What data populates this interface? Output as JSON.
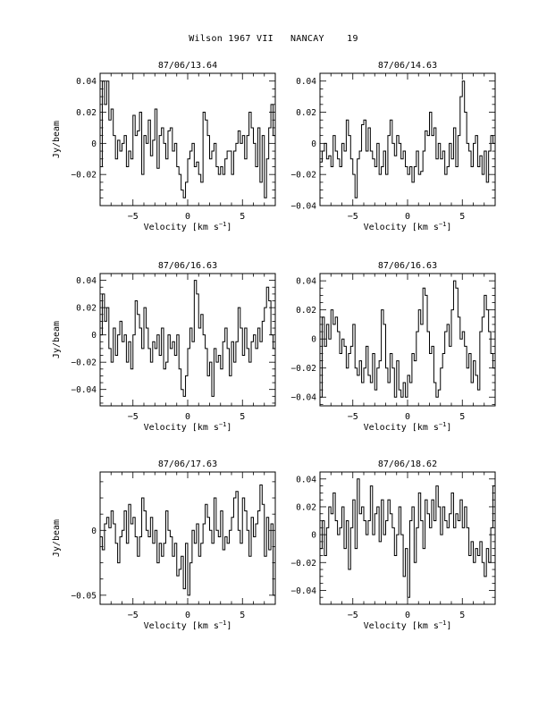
{
  "page_title": "Wilson 1967 VII   NANCAY    19",
  "chart_data": [
    {
      "type": "line",
      "title": "87/06/13.64",
      "xlabel": "Velocity [km s",
      "xlabel_sup": "−1",
      "xlabel_end": "]",
      "ylabel": "Jy/beam",
      "xlim": [
        -8,
        8
      ],
      "ylim": [
        -0.04,
        0.045
      ],
      "xticks": [
        {
          "v": -5,
          "label": "−5"
        },
        {
          "v": 0,
          "label": "0"
        },
        {
          "v": 5,
          "label": "5"
        }
      ],
      "yticks": [
        {
          "v": 0.04,
          "label": "0.04"
        },
        {
          "v": 0.02,
          "label": "0.02"
        },
        {
          "v": 0,
          "label": "0"
        },
        {
          "v": -0.02,
          "label": "−0.02"
        }
      ],
      "x": [
        -8.0,
        -7.8,
        -7.6,
        -7.4,
        -7.2,
        -7.0,
        -6.8,
        -6.6,
        -6.4,
        -6.2,
        -6.0,
        -5.8,
        -5.6,
        -5.4,
        -5.2,
        -5.0,
        -4.8,
        -4.6,
        -4.4,
        -4.2,
        -4.0,
        -3.8,
        -3.6,
        -3.4,
        -3.2,
        -3.0,
        -2.8,
        -2.6,
        -2.4,
        -2.2,
        -2.0,
        -1.8,
        -1.6,
        -1.4,
        -1.2,
        -1.0,
        -0.8,
        -0.6,
        -0.4,
        -0.2,
        0.0,
        0.2,
        0.4,
        0.6,
        0.8,
        1.0,
        1.2,
        1.4,
        1.6,
        1.8,
        2.0,
        2.2,
        2.4,
        2.6,
        2.8,
        3.0,
        3.2,
        3.4,
        3.6,
        3.8,
        4.0,
        4.2,
        4.4,
        4.6,
        4.8,
        5.0,
        5.2,
        5.4,
        5.6,
        5.8,
        6.0,
        6.2,
        6.4,
        6.6,
        6.8,
        7.0,
        7.2,
        7.4,
        7.6,
        7.8
      ],
      "values": [
        -0.015,
        0.04,
        0.025,
        0.04,
        0.015,
        0.022,
        0.005,
        -0.01,
        0.002,
        -0.005,
        0.0,
        0.005,
        -0.015,
        -0.005,
        -0.01,
        0.018,
        0.005,
        0.008,
        0.02,
        -0.02,
        0.005,
        0.0,
        0.015,
        -0.008,
        0.002,
        0.022,
        -0.016,
        0.005,
        0.01,
        0.0,
        -0.01,
        0.008,
        0.01,
        -0.005,
        0.0,
        -0.015,
        -0.02,
        -0.03,
        -0.035,
        -0.025,
        -0.01,
        -0.005,
        0.0,
        -0.015,
        -0.012,
        -0.02,
        -0.025,
        0.02,
        0.015,
        0.005,
        -0.01,
        -0.005,
        0.0,
        -0.015,
        -0.02,
        -0.015,
        -0.02,
        -0.01,
        -0.005,
        -0.005,
        -0.02,
        -0.005,
        0.0,
        0.008,
        0.0,
        0.005,
        -0.01,
        0.005,
        0.02,
        0.01,
        0.0,
        -0.015,
        0.01,
        -0.025,
        0.005,
        -0.035,
        -0.01,
        0.01,
        0.025,
        0.005
      ]
    },
    {
      "type": "line",
      "title": "87/06/14.63",
      "xlabel": "Velocity [km s",
      "xlabel_sup": "−1",
      "xlabel_end": "]",
      "ylabel": "",
      "xlim": [
        -8,
        8
      ],
      "ylim": [
        -0.04,
        0.045
      ],
      "xticks": [
        {
          "v": -5,
          "label": "−5"
        },
        {
          "v": 0,
          "label": "0"
        },
        {
          "v": 5,
          "label": "5"
        }
      ],
      "yticks": [
        {
          "v": 0.04,
          "label": "0.04"
        },
        {
          "v": 0.02,
          "label": "0.02"
        },
        {
          "v": 0,
          "label": "0"
        },
        {
          "v": -0.02,
          "label": "−0.02"
        },
        {
          "v": -0.04,
          "label": "−0.04"
        }
      ],
      "x": [
        -8.0,
        -7.8,
        -7.6,
        -7.4,
        -7.2,
        -7.0,
        -6.8,
        -6.6,
        -6.4,
        -6.2,
        -6.0,
        -5.8,
        -5.6,
        -5.4,
        -5.2,
        -5.0,
        -4.8,
        -4.6,
        -4.4,
        -4.2,
        -4.0,
        -3.8,
        -3.6,
        -3.4,
        -3.2,
        -3.0,
        -2.8,
        -2.6,
        -2.4,
        -2.2,
        -2.0,
        -1.8,
        -1.6,
        -1.4,
        -1.2,
        -1.0,
        -0.8,
        -0.6,
        -0.4,
        -0.2,
        0.0,
        0.2,
        0.4,
        0.6,
        0.8,
        1.0,
        1.2,
        1.4,
        1.6,
        1.8,
        2.0,
        2.2,
        2.4,
        2.6,
        2.8,
        3.0,
        3.2,
        3.4,
        3.6,
        3.8,
        4.0,
        4.2,
        4.4,
        4.6,
        4.8,
        5.0,
        5.2,
        5.4,
        5.6,
        5.8,
        6.0,
        6.2,
        6.4,
        6.6,
        6.8,
        7.0,
        7.2,
        7.4,
        7.6,
        7.8
      ],
      "values": [
        -0.012,
        -0.005,
        0.0,
        -0.01,
        -0.008,
        -0.015,
        0.005,
        -0.005,
        -0.01,
        -0.015,
        0.0,
        -0.005,
        0.015,
        0.005,
        -0.01,
        -0.02,
        -0.035,
        -0.01,
        -0.005,
        0.012,
        0.015,
        -0.005,
        0.01,
        -0.005,
        -0.01,
        -0.015,
        0.0,
        -0.02,
        -0.015,
        -0.005,
        -0.02,
        0.005,
        0.015,
        0.0,
        -0.008,
        0.005,
        0.0,
        -0.01,
        -0.005,
        -0.015,
        -0.02,
        -0.015,
        -0.025,
        -0.015,
        -0.005,
        -0.02,
        -0.018,
        -0.005,
        0.008,
        0.005,
        0.02,
        0.005,
        0.01,
        -0.01,
        0.0,
        -0.01,
        -0.005,
        -0.02,
        -0.015,
        0.0,
        -0.01,
        0.01,
        -0.015,
        0.005,
        0.03,
        0.04,
        0.02,
        0.0,
        -0.005,
        -0.015,
        0.0,
        0.005,
        -0.015,
        -0.008,
        -0.02,
        -0.005,
        -0.025,
        -0.005,
        0.005,
        0.0
      ]
    },
    {
      "type": "line",
      "title": "87/06/16.63",
      "xlabel": "Velocity [km s",
      "xlabel_sup": "−1",
      "xlabel_end": "]",
      "ylabel": "Jy/beam",
      "xlim": [
        -8,
        8
      ],
      "ylim": [
        -0.052,
        0.045
      ],
      "xticks": [
        {
          "v": -5,
          "label": "−5"
        },
        {
          "v": 0,
          "label": "0"
        },
        {
          "v": 5,
          "label": "5"
        }
      ],
      "yticks": [
        {
          "v": 0.04,
          "label": "0.04"
        },
        {
          "v": 0.02,
          "label": "0.02"
        },
        {
          "v": 0,
          "label": "0"
        },
        {
          "v": -0.02,
          "label": "−0.02"
        },
        {
          "v": -0.04,
          "label": "−0.04"
        }
      ],
      "x": [
        -8.0,
        -7.8,
        -7.6,
        -7.4,
        -7.2,
        -7.0,
        -6.8,
        -6.6,
        -6.4,
        -6.2,
        -6.0,
        -5.8,
        -5.6,
        -5.4,
        -5.2,
        -5.0,
        -4.8,
        -4.6,
        -4.4,
        -4.2,
        -4.0,
        -3.8,
        -3.6,
        -3.4,
        -3.2,
        -3.0,
        -2.8,
        -2.6,
        -2.4,
        -2.2,
        -2.0,
        -1.8,
        -1.6,
        -1.4,
        -1.2,
        -1.0,
        -0.8,
        -0.6,
        -0.4,
        -0.2,
        0.0,
        0.2,
        0.4,
        0.6,
        0.8,
        1.0,
        1.2,
        1.4,
        1.6,
        1.8,
        2.0,
        2.2,
        2.4,
        2.6,
        2.8,
        3.0,
        3.2,
        3.4,
        3.6,
        3.8,
        4.0,
        4.2,
        4.4,
        4.6,
        4.8,
        5.0,
        5.2,
        5.4,
        5.6,
        5.8,
        6.0,
        6.2,
        6.4,
        6.6,
        6.8,
        7.0,
        7.2,
        7.4,
        7.6,
        7.8
      ],
      "values": [
        0.0,
        0.03,
        0.01,
        0.02,
        -0.01,
        -0.02,
        0.005,
        -0.015,
        0.0,
        0.01,
        -0.005,
        0.0,
        -0.02,
        -0.005,
        -0.025,
        0.0,
        0.025,
        0.015,
        0.005,
        -0.01,
        0.02,
        0.005,
        -0.01,
        -0.02,
        -0.005,
        -0.01,
        0.0,
        -0.015,
        0.005,
        -0.025,
        -0.02,
        0.0,
        -0.01,
        -0.005,
        -0.015,
        0.0,
        -0.025,
        -0.04,
        -0.045,
        -0.03,
        -0.01,
        0.005,
        -0.005,
        0.04,
        0.03,
        0.005,
        0.015,
        0.0,
        -0.01,
        -0.03,
        -0.02,
        -0.045,
        -0.01,
        -0.02,
        -0.015,
        -0.025,
        -0.005,
        0.005,
        -0.01,
        -0.03,
        -0.005,
        -0.02,
        -0.005,
        0.02,
        0.005,
        -0.015,
        0.005,
        -0.01,
        -0.02,
        -0.005,
        0.0,
        -0.01,
        0.005,
        -0.005,
        0.01,
        0.02,
        0.035,
        0.025,
        0.0,
        -0.01
      ]
    },
    {
      "type": "line",
      "title": "87/06/16.63",
      "xlabel": "Velocity [km s",
      "xlabel_sup": "−1",
      "xlabel_end": "]",
      "ylabel": "",
      "xlim": [
        -8,
        8
      ],
      "ylim": [
        -0.046,
        0.045
      ],
      "xticks": [
        {
          "v": -5,
          "label": "−5"
        },
        {
          "v": 0,
          "label": "0"
        },
        {
          "v": 5,
          "label": "5"
        }
      ],
      "yticks": [
        {
          "v": 0.04,
          "label": "0.04"
        },
        {
          "v": 0.02,
          "label": "0.02"
        },
        {
          "v": 0,
          "label": "0"
        },
        {
          "v": -0.02,
          "label": "−0.02"
        },
        {
          "v": -0.04,
          "label": "−0.04"
        }
      ],
      "x": [
        -8.0,
        -7.8,
        -7.6,
        -7.4,
        -7.2,
        -7.0,
        -6.8,
        -6.6,
        -6.4,
        -6.2,
        -6.0,
        -5.8,
        -5.6,
        -5.4,
        -5.2,
        -5.0,
        -4.8,
        -4.6,
        -4.4,
        -4.2,
        -4.0,
        -3.8,
        -3.6,
        -3.4,
        -3.2,
        -3.0,
        -2.8,
        -2.6,
        -2.4,
        -2.2,
        -2.0,
        -1.8,
        -1.6,
        -1.4,
        -1.2,
        -1.0,
        -0.8,
        -0.6,
        -0.4,
        -0.2,
        0.0,
        0.2,
        0.4,
        0.6,
        0.8,
        1.0,
        1.2,
        1.4,
        1.6,
        1.8,
        2.0,
        2.2,
        2.4,
        2.6,
        2.8,
        3.0,
        3.2,
        3.4,
        3.6,
        3.8,
        4.0,
        4.2,
        4.4,
        4.6,
        4.8,
        5.0,
        5.2,
        5.4,
        5.6,
        5.8,
        6.0,
        6.2,
        6.4,
        6.6,
        6.8,
        7.0,
        7.2,
        7.4,
        7.6,
        7.8
      ],
      "values": [
        -0.04,
        0.015,
        -0.005,
        0.01,
        0.0,
        0.02,
        0.01,
        0.015,
        0.005,
        -0.01,
        0.0,
        -0.005,
        -0.02,
        -0.01,
        -0.005,
        0.01,
        -0.02,
        -0.025,
        -0.015,
        -0.03,
        -0.02,
        -0.005,
        -0.025,
        -0.03,
        -0.01,
        -0.035,
        -0.02,
        -0.015,
        0.02,
        0.01,
        -0.02,
        -0.03,
        -0.01,
        -0.02,
        -0.04,
        -0.015,
        -0.035,
        -0.04,
        -0.03,
        -0.04,
        -0.025,
        -0.03,
        -0.01,
        -0.015,
        0.005,
        0.02,
        0.01,
        0.035,
        0.03,
        0.005,
        -0.01,
        -0.005,
        -0.03,
        -0.04,
        -0.035,
        -0.02,
        -0.01,
        0.005,
        0.01,
        -0.005,
        0.02,
        0.04,
        0.035,
        0.015,
        0.0,
        0.005,
        -0.005,
        -0.02,
        -0.01,
        -0.03,
        -0.015,
        -0.025,
        -0.035,
        0.005,
        0.015,
        0.03,
        0.02,
        0.005,
        -0.01,
        -0.02
      ]
    },
    {
      "type": "line",
      "title": "87/06/17.63",
      "xlabel": "Velocity [km s",
      "xlabel_sup": "−1",
      "xlabel_end": "]",
      "ylabel": "Jy/beam",
      "xlim": [
        -8,
        8
      ],
      "ylim": [
        -0.057,
        0.045
      ],
      "xticks": [
        {
          "v": -5,
          "label": "−5"
        },
        {
          "v": 0,
          "label": "0"
        },
        {
          "v": 5,
          "label": "5"
        }
      ],
      "yticks": [
        {
          "v": 0,
          "label": "0"
        },
        {
          "v": -0.05,
          "label": "−0.05"
        }
      ],
      "x": [
        -8.0,
        -7.8,
        -7.6,
        -7.4,
        -7.2,
        -7.0,
        -6.8,
        -6.6,
        -6.4,
        -6.2,
        -6.0,
        -5.8,
        -5.6,
        -5.4,
        -5.2,
        -5.0,
        -4.8,
        -4.6,
        -4.4,
        -4.2,
        -4.0,
        -3.8,
        -3.6,
        -3.4,
        -3.2,
        -3.0,
        -2.8,
        -2.6,
        -2.4,
        -2.2,
        -2.0,
        -1.8,
        -1.6,
        -1.4,
        -1.2,
        -1.0,
        -0.8,
        -0.6,
        -0.4,
        -0.2,
        0.0,
        0.2,
        0.4,
        0.6,
        0.8,
        1.0,
        1.2,
        1.4,
        1.6,
        1.8,
        2.0,
        2.2,
        2.4,
        2.6,
        2.8,
        3.0,
        3.2,
        3.4,
        3.6,
        3.8,
        4.0,
        4.2,
        4.4,
        4.6,
        4.8,
        5.0,
        5.2,
        5.4,
        5.6,
        5.8,
        6.0,
        6.2,
        6.4,
        6.6,
        6.8,
        7.0,
        7.2,
        7.4,
        7.6,
        7.8
      ],
      "values": [
        -0.005,
        -0.015,
        0.005,
        0.01,
        0.002,
        0.015,
        0.005,
        -0.01,
        -0.025,
        -0.005,
        0.0,
        0.015,
        -0.01,
        0.02,
        0.005,
        0.01,
        -0.005,
        -0.02,
        -0.005,
        0.025,
        0.015,
        0.0,
        -0.005,
        0.01,
        -0.01,
        0.0,
        -0.025,
        -0.01,
        -0.02,
        -0.01,
        0.015,
        0.0,
        -0.005,
        -0.02,
        -0.01,
        -0.035,
        -0.03,
        -0.02,
        -0.045,
        -0.01,
        -0.05,
        -0.025,
        0.0,
        -0.01,
        0.005,
        -0.02,
        -0.01,
        0.005,
        0.02,
        0.01,
        0.0,
        -0.01,
        0.025,
        0.0,
        -0.005,
        0.015,
        -0.015,
        -0.005,
        -0.01,
        0.0,
        0.01,
        0.025,
        0.03,
        0.0,
        -0.01,
        0.025,
        0.015,
        0.0,
        -0.02,
        0.01,
        -0.005,
        0.005,
        0.015,
        0.035,
        0.02,
        -0.02,
        0.01,
        -0.015,
        0.005,
        -0.05
      ]
    },
    {
      "type": "line",
      "title": "87/06/18.62",
      "xlabel": "Velocity [km s",
      "xlabel_sup": "−1",
      "xlabel_end": "]",
      "ylabel": "",
      "xlim": [
        -8,
        8
      ],
      "ylim": [
        -0.05,
        0.045
      ],
      "xticks": [
        {
          "v": -5,
          "label": "−5"
        },
        {
          "v": 0,
          "label": "0"
        },
        {
          "v": 5,
          "label": "5"
        }
      ],
      "yticks": [
        {
          "v": 0.04,
          "label": "0.04"
        },
        {
          "v": 0.02,
          "label": "0.02"
        },
        {
          "v": 0,
          "label": "0"
        },
        {
          "v": -0.02,
          "label": "−0.02"
        },
        {
          "v": -0.04,
          "label": "−0.04"
        }
      ],
      "x": [
        -8.0,
        -7.8,
        -7.6,
        -7.4,
        -7.2,
        -7.0,
        -6.8,
        -6.6,
        -6.4,
        -6.2,
        -6.0,
        -5.8,
        -5.6,
        -5.4,
        -5.2,
        -5.0,
        -4.8,
        -4.6,
        -4.4,
        -4.2,
        -4.0,
        -3.8,
        -3.6,
        -3.4,
        -3.2,
        -3.0,
        -2.8,
        -2.6,
        -2.4,
        -2.2,
        -2.0,
        -1.8,
        -1.6,
        -1.4,
        -1.2,
        -1.0,
        -0.8,
        -0.6,
        -0.4,
        -0.2,
        0.0,
        0.2,
        0.4,
        0.6,
        0.8,
        1.0,
        1.2,
        1.4,
        1.6,
        1.8,
        2.0,
        2.2,
        2.4,
        2.6,
        2.8,
        3.0,
        3.2,
        3.4,
        3.6,
        3.8,
        4.0,
        4.2,
        4.4,
        4.6,
        4.8,
        5.0,
        5.2,
        5.4,
        5.6,
        5.8,
        6.0,
        6.2,
        6.4,
        6.6,
        6.8,
        7.0,
        7.2,
        7.4,
        7.6,
        7.8
      ],
      "values": [
        -0.01,
        0.01,
        -0.015,
        0.005,
        0.02,
        0.015,
        0.03,
        0.01,
        0.0,
        0.005,
        0.02,
        -0.01,
        0.01,
        -0.025,
        0.005,
        0.025,
        -0.01,
        0.04,
        0.015,
        0.02,
        0.01,
        0.0,
        0.01,
        0.035,
        0.0,
        0.015,
        0.02,
        -0.005,
        0.025,
        0.0,
        0.01,
        0.025,
        0.015,
        0.005,
        -0.015,
        0.0,
        0.02,
        0.0,
        -0.03,
        -0.01,
        -0.045,
        0.01,
        0.02,
        -0.02,
        0.005,
        0.03,
        0.01,
        -0.01,
        0.025,
        0.015,
        0.005,
        0.025,
        0.01,
        0.035,
        0.02,
        0.0,
        0.02,
        0.01,
        0.005,
        0.015,
        0.03,
        0.005,
        0.015,
        0.01,
        0.025,
        0.005,
        0.02,
        0.005,
        -0.015,
        -0.005,
        -0.02,
        -0.01,
        -0.015,
        -0.005,
        -0.02,
        -0.03,
        -0.01,
        -0.02,
        0.005,
        0.035
      ]
    }
  ]
}
